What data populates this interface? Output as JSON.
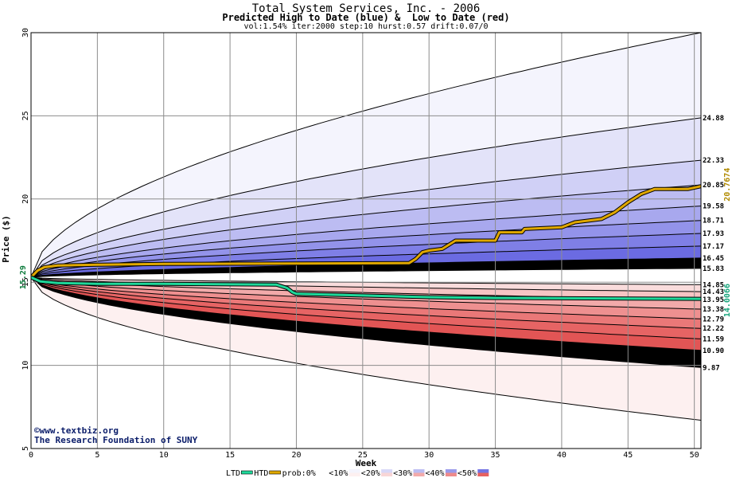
{
  "header": {
    "title": "Total System Services, Inc. - 2006",
    "subtitle": "Predicted High to Date (blue) &  Low to Date (red)",
    "params": "vol:1.54% iter:2000 step:10 hurst:0.57 drift:0.07/0"
  },
  "watermark": {
    "line1": "©www.textbiz.org",
    "line2": "The Research Foundation of SUNY"
  },
  "chart_data": {
    "type": "area",
    "xlabel": "Week",
    "ylabel": "Price ($)",
    "xlim": [
      0,
      50.5
    ],
    "ylim": [
      5,
      30
    ],
    "xticks": [
      0,
      5,
      10,
      15,
      20,
      25,
      30,
      35,
      40,
      45,
      50
    ],
    "yticks": [
      5,
      10,
      15,
      20,
      25,
      30
    ],
    "grid": true,
    "start_price_label": "15.29",
    "start_price": 15.29,
    "htd_final_label": "20.7674",
    "ltd_final_label": "14.0066",
    "upper_quantile_labels": [
      "24.88",
      "22.33",
      "20.85",
      "19.58",
      "18.71",
      "17.93",
      "17.17",
      "16.45",
      "15.83"
    ],
    "upper_quantile_values": [
      24.88,
      22.33,
      20.85,
      19.58,
      18.71,
      17.93,
      17.17,
      16.45,
      15.83
    ],
    "lower_quantile_labels": [
      "14.85",
      "14.43",
      "13.95",
      "13.38",
      "12.79",
      "12.22",
      "11.59",
      "10.90",
      "9.87"
    ],
    "lower_quantile_values": [
      14.85,
      14.43,
      13.95,
      13.38,
      12.79,
      12.22,
      11.59,
      10.9,
      9.87
    ],
    "upper_envelope_final": 30,
    "lower_envelope_final": 6.7,
    "htd_path": [
      [
        0,
        15.29
      ],
      [
        0.5,
        15.7
      ],
      [
        1,
        15.9
      ],
      [
        2,
        16.0
      ],
      [
        5,
        16.05
      ],
      [
        10,
        16.1
      ],
      [
        20,
        16.12
      ],
      [
        28.5,
        16.15
      ],
      [
        29,
        16.4
      ],
      [
        29.5,
        16.8
      ],
      [
        30,
        16.9
      ],
      [
        31,
        17.0
      ],
      [
        32,
        17.5
      ],
      [
        35,
        17.5
      ],
      [
        35.3,
        18.0
      ],
      [
        37,
        18.0
      ],
      [
        37.2,
        18.2
      ],
      [
        40,
        18.3
      ],
      [
        41,
        18.6
      ],
      [
        43,
        18.8
      ],
      [
        44,
        19.2
      ],
      [
        45,
        19.8
      ],
      [
        46,
        20.3
      ],
      [
        47,
        20.6
      ],
      [
        49.5,
        20.6
      ],
      [
        50.5,
        20.77
      ]
    ],
    "ltd_path": [
      [
        0,
        15.29
      ],
      [
        0.7,
        15.05
      ],
      [
        2,
        14.95
      ],
      [
        5,
        14.9
      ],
      [
        10,
        14.9
      ],
      [
        18.5,
        14.85
      ],
      [
        19.3,
        14.65
      ],
      [
        19.7,
        14.4
      ],
      [
        20,
        14.3
      ],
      [
        25,
        14.2
      ],
      [
        30,
        14.1
      ],
      [
        35,
        14.05
      ],
      [
        50.5,
        14.0
      ]
    ],
    "legend": {
      "ltd_label": "LTD",
      "htd_label": "HTD",
      "prob_label": "prob:0%",
      "items": [
        "<10%",
        "<20%",
        "<30%",
        "<40%",
        "<50%"
      ]
    },
    "colors": {
      "upper_bands": [
        "#f4f4fd",
        "#e3e3f9",
        "#d0d0f6",
        "#bcbcf2",
        "#a8a8ee",
        "#9393ea",
        "#7f7fe6",
        "#6b6be2"
      ],
      "lower_bands": [
        "#fdf0f0",
        "#f9dcdc",
        "#f6c4c4",
        "#f2aaaa",
        "#ee9090",
        "#ea7878",
        "#e66464",
        "#e25555"
      ],
      "htd": "#e0a800",
      "ltd": "#1fd89a",
      "htd_text": "#b08a00",
      "ltd_text": "#16a37a",
      "grid": "#8c8c8c"
    }
  }
}
